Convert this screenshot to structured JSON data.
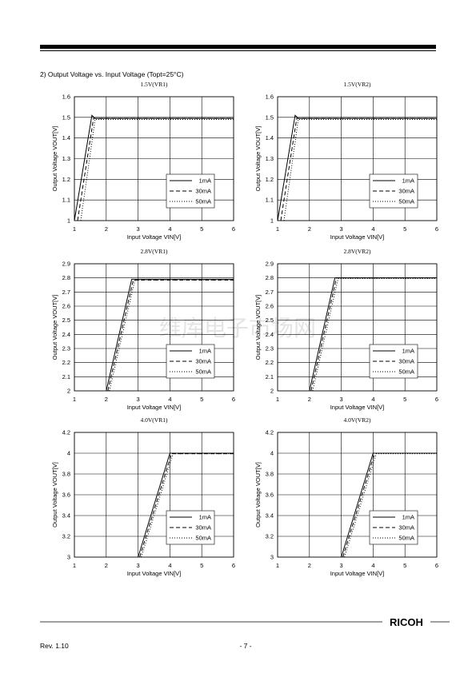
{
  "header": {
    "section_title": "2)   Output Voltage vs. Input Voltage (Topt=25°C)"
  },
  "watermark": "维库电子市场网",
  "footer": {
    "revision": "Rev. 1.10",
    "page_number": "- 7 -",
    "logo": "RICOH"
  },
  "chart_data": [
    {
      "type": "line",
      "title": "1.5V(VR1)",
      "x_label": "Input Voltage VIN[V]",
      "y_label": "Output Voltage VOUT[V]",
      "xlim": [
        1,
        6
      ],
      "xticks": [
        1,
        2,
        3,
        4,
        5,
        6
      ],
      "ylim": [
        1,
        1.6
      ],
      "yticks": [
        1,
        1.1,
        1.2,
        1.3,
        1.4,
        1.5,
        1.6
      ],
      "grid": true,
      "legend": "lower right",
      "series": [
        {
          "name": "1mA",
          "color": "#000000",
          "dash": "solid",
          "x": [
            1,
            1.55,
            1.65,
            6
          ],
          "values": [
            1,
            1.51,
            1.495,
            1.495
          ]
        },
        {
          "name": "30mA",
          "color": "#000000",
          "dash": "dashed",
          "x": [
            1.1,
            1.6,
            6
          ],
          "values": [
            1,
            1.495,
            1.495
          ]
        },
        {
          "name": "50mA",
          "color": "#000000",
          "dash": "dotted",
          "x": [
            1.2,
            1.65,
            6
          ],
          "values": [
            1,
            1.49,
            1.49
          ]
        }
      ]
    },
    {
      "type": "line",
      "title": "1.5V(VR2)",
      "x_label": "Input Voltage VIN[V]",
      "y_label": "Output Voltage VOUT[V]",
      "xlim": [
        1,
        6
      ],
      "xticks": [
        1,
        2,
        3,
        4,
        5,
        6
      ],
      "ylim": [
        1,
        1.6
      ],
      "yticks": [
        1,
        1.1,
        1.2,
        1.3,
        1.4,
        1.5,
        1.6
      ],
      "grid": true,
      "legend": "lower right",
      "series": [
        {
          "name": "1mA",
          "color": "#000000",
          "dash": "solid",
          "x": [
            1,
            1.55,
            1.65,
            6
          ],
          "values": [
            1,
            1.51,
            1.495,
            1.495
          ]
        },
        {
          "name": "30mA",
          "color": "#000000",
          "dash": "dashed",
          "x": [
            1.1,
            1.6,
            6
          ],
          "values": [
            1,
            1.495,
            1.495
          ]
        },
        {
          "name": "50mA",
          "color": "#000000",
          "dash": "dotted",
          "x": [
            1.2,
            1.65,
            6
          ],
          "values": [
            1,
            1.49,
            1.49
          ]
        }
      ]
    },
    {
      "type": "line",
      "title": "2.8V(VR1)",
      "x_label": "Input Voltage VIN[V]",
      "y_label": "Output Voltage VOUT[V]",
      "xlim": [
        1,
        6
      ],
      "xticks": [
        1,
        2,
        3,
        4,
        5,
        6
      ],
      "ylim": [
        2,
        2.9
      ],
      "yticks": [
        2,
        2.1,
        2.2,
        2.3,
        2.4,
        2.5,
        2.6,
        2.7,
        2.8,
        2.9
      ],
      "grid": true,
      "legend": "lower right",
      "series": [
        {
          "name": "1mA",
          "color": "#000000",
          "dash": "solid",
          "x": [
            2,
            2.8,
            6
          ],
          "values": [
            2,
            2.79,
            2.79
          ]
        },
        {
          "name": "30mA",
          "color": "#000000",
          "dash": "dashed",
          "x": [
            2.05,
            2.85,
            6
          ],
          "values": [
            2,
            2.785,
            2.785
          ]
        },
        {
          "name": "50mA",
          "color": "#000000",
          "dash": "dotted",
          "x": [
            2.1,
            2.9,
            6
          ],
          "values": [
            2,
            2.785,
            2.785
          ]
        }
      ]
    },
    {
      "type": "line",
      "title": "2.8V(VR2)",
      "x_label": "Input Voltage VIN[V]",
      "y_label": "Output Voltage VOUT[V]",
      "xlim": [
        1,
        6
      ],
      "xticks": [
        1,
        2,
        3,
        4,
        5,
        6
      ],
      "ylim": [
        2,
        2.9
      ],
      "yticks": [
        2,
        2.1,
        2.2,
        2.3,
        2.4,
        2.5,
        2.6,
        2.7,
        2.8,
        2.9
      ],
      "grid": true,
      "legend": "lower right",
      "series": [
        {
          "name": "1mA",
          "color": "#000000",
          "dash": "solid",
          "x": [
            2,
            2.8,
            6
          ],
          "values": [
            2,
            2.8,
            2.8
          ]
        },
        {
          "name": "30mA",
          "color": "#000000",
          "dash": "dashed",
          "x": [
            2.05,
            2.85,
            6
          ],
          "values": [
            2,
            2.8,
            2.8
          ]
        },
        {
          "name": "50mA",
          "color": "#000000",
          "dash": "dotted",
          "x": [
            2.1,
            2.9,
            6
          ],
          "values": [
            2,
            2.795,
            2.795
          ]
        }
      ]
    },
    {
      "type": "line",
      "title": "4.0V(VR1)",
      "x_label": "Input Voltage VIN[V]",
      "y_label": "Output Voltage VOUT[V]",
      "xlim": [
        1,
        6
      ],
      "xticks": [
        1,
        2,
        3,
        4,
        5,
        6
      ],
      "ylim": [
        3,
        4.2
      ],
      "yticks": [
        3,
        3.2,
        3.4,
        3.6,
        3.8,
        4,
        4.2
      ],
      "grid": true,
      "legend": "lower right",
      "series": [
        {
          "name": "1mA",
          "color": "#000000",
          "dash": "solid",
          "x": [
            3,
            4,
            6
          ],
          "values": [
            3,
            4,
            4
          ]
        },
        {
          "name": "30mA",
          "color": "#000000",
          "dash": "dashed",
          "x": [
            3.05,
            4.05,
            6
          ],
          "values": [
            3,
            3.995,
            3.995
          ]
        },
        {
          "name": "50mA",
          "color": "#000000",
          "dash": "dotted",
          "x": [
            3.1,
            4.1,
            6
          ],
          "values": [
            3,
            3.995,
            3.995
          ]
        }
      ]
    },
    {
      "type": "line",
      "title": "4.0V(VR2)",
      "x_label": "Input Voltage VIN[V]",
      "y_label": "Output Voltage VOUT[V]",
      "xlim": [
        1,
        6
      ],
      "xticks": [
        1,
        2,
        3,
        4,
        5,
        6
      ],
      "ylim": [
        3,
        4.2
      ],
      "yticks": [
        3,
        3.2,
        3.4,
        3.6,
        3.8,
        4,
        4.2
      ],
      "grid": true,
      "legend": "lower right",
      "series": [
        {
          "name": "1mA",
          "color": "#000000",
          "dash": "solid",
          "x": [
            3,
            4,
            6
          ],
          "values": [
            3,
            4,
            4
          ]
        },
        {
          "name": "30mA",
          "color": "#000000",
          "dash": "dashed",
          "x": [
            3.05,
            4.05,
            6
          ],
          "values": [
            3,
            4,
            4
          ]
        },
        {
          "name": "50mA",
          "color": "#000000",
          "dash": "dotted",
          "x": [
            3.1,
            4.1,
            6
          ],
          "values": [
            3,
            3.995,
            3.995
          ]
        }
      ]
    }
  ]
}
